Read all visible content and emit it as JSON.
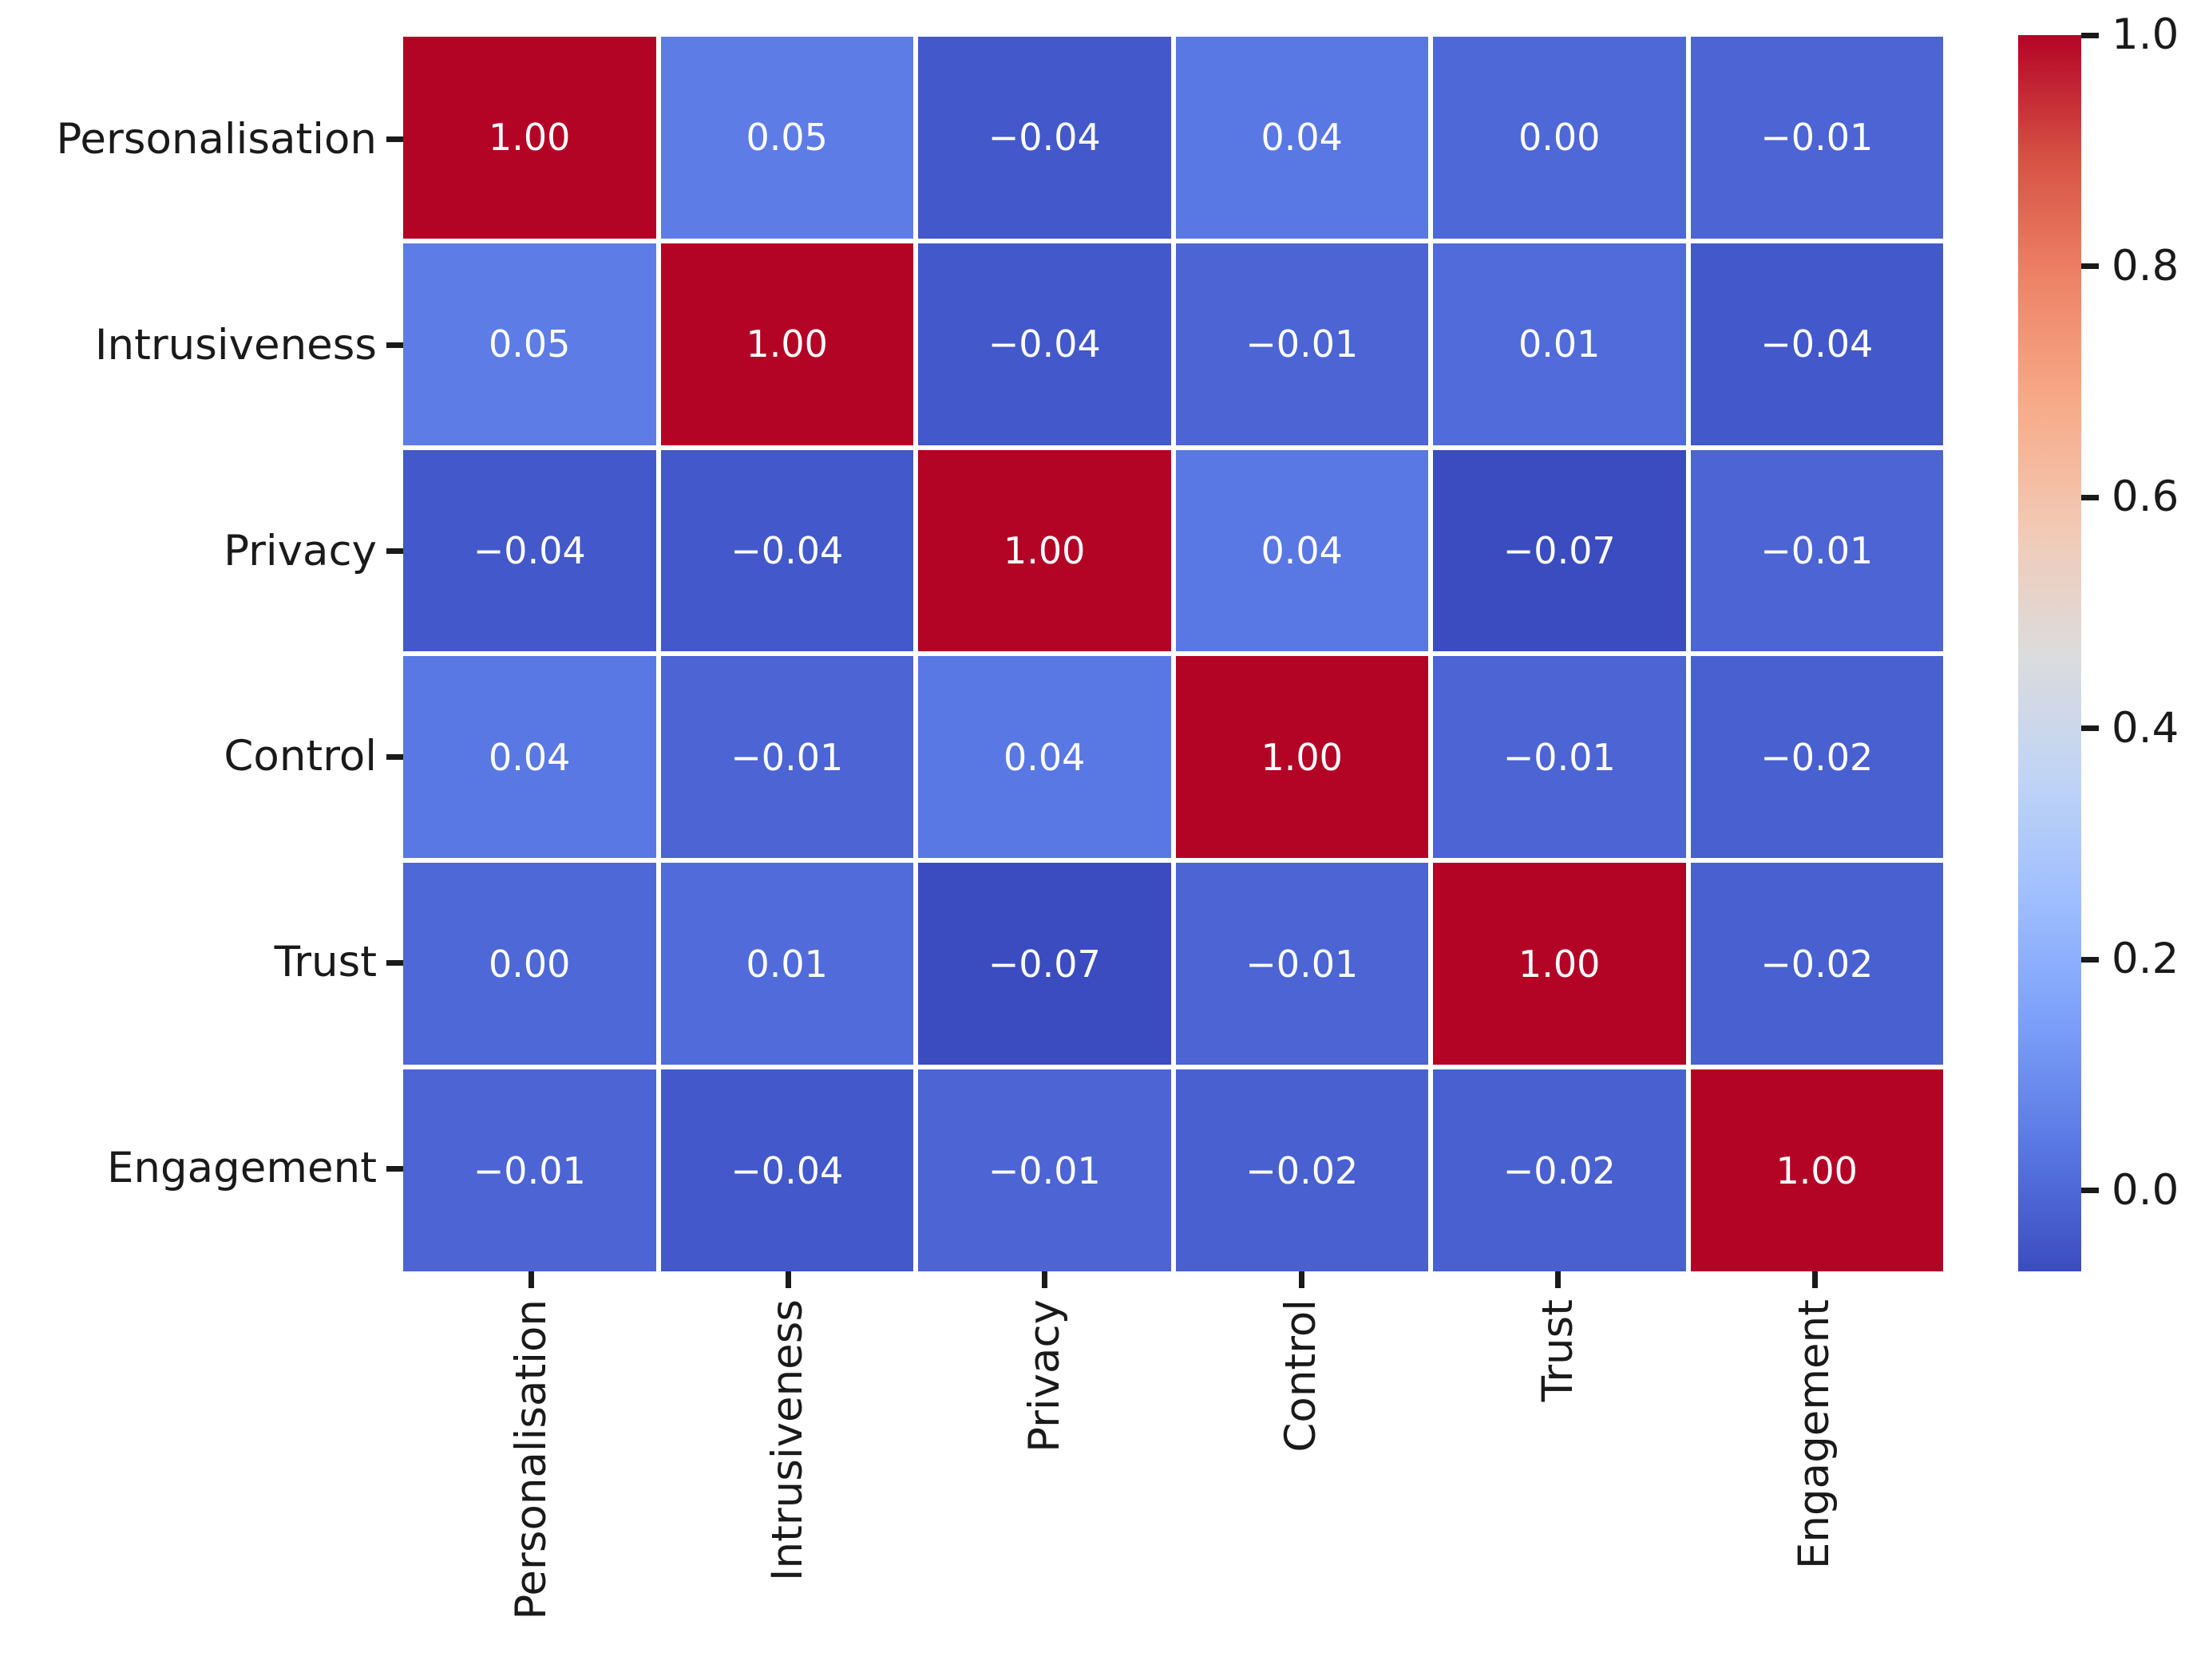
{
  "figure": {
    "background": "#ffffff",
    "text_color": "#1a1a1a"
  },
  "chart_data": {
    "type": "heatmap",
    "title": "",
    "categories": [
      "Personalisation",
      "Intrusiveness",
      "Privacy",
      "Control",
      "Trust",
      "Engagement"
    ],
    "matrix": [
      [
        1.0,
        0.05,
        -0.04,
        0.04,
        0.0,
        -0.01
      ],
      [
        0.05,
        1.0,
        -0.04,
        -0.01,
        0.01,
        -0.04
      ],
      [
        -0.04,
        -0.04,
        1.0,
        0.04,
        -0.07,
        -0.01
      ],
      [
        0.04,
        -0.01,
        0.04,
        1.0,
        -0.01,
        -0.02
      ],
      [
        0.0,
        0.01,
        -0.07,
        -0.01,
        1.0,
        -0.02
      ],
      [
        -0.01,
        -0.04,
        -0.01,
        -0.02,
        -0.02,
        1.0
      ]
    ],
    "annotation_decimals": 2,
    "annotation_text_color": "#ffffff",
    "vmin": -0.07,
    "vmax": 1.0,
    "grid_line_color": "#ffffff",
    "colormap": {
      "name": "coolwarm",
      "stops": [
        "#3b4cc0",
        "#5977e3",
        "#7b9ff9",
        "#9ebeff",
        "#c0d4f5",
        "#dcdcdc",
        "#f2cab5",
        "#f7ab89",
        "#ee8468",
        "#d65244",
        "#b40426"
      ]
    },
    "colorbar": {
      "position": "right",
      "ticks": [
        0.0,
        0.2,
        0.4,
        0.6,
        0.8,
        1.0
      ],
      "tick_labels": [
        "0.0",
        "0.2",
        "0.4",
        "0.6",
        "0.8",
        "1.0"
      ]
    },
    "legend": null,
    "xlabel": "",
    "ylabel": ""
  }
}
